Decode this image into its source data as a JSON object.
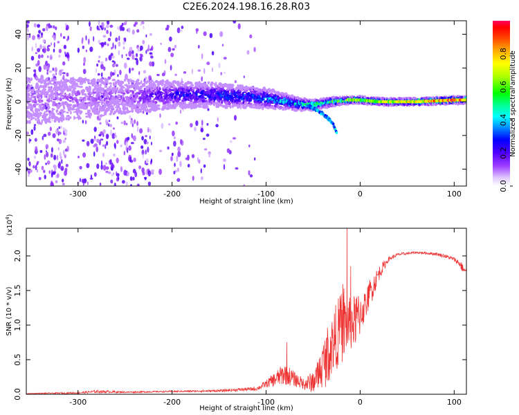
{
  "title": "C2E6.2024.198.16.28.R03",
  "chart_data": [
    {
      "type": "heatmap",
      "xlabel": "Height of straight line (km)",
      "ylabel": "Frequency (Hz)",
      "xlim": [
        -355,
        113
      ],
      "ylim": [
        -50,
        48
      ],
      "x_ticks": [
        -300,
        -200,
        -100,
        0,
        100
      ],
      "y_ticks": [
        -40,
        -20,
        0,
        20,
        40
      ],
      "grid": false,
      "colorbar": {
        "label": "Normalized spectral amplitude",
        "range": [
          0.0,
          1.0
        ],
        "ticks": [
          "0.0",
          "0.2",
          "0.4",
          "0.6",
          "0.8"
        ],
        "colormap": [
          "#ffffff",
          "#cc99ff",
          "#8b00ff",
          "#4400ff",
          "#0000ff",
          "#00aaff",
          "#00ffff",
          "#00ff88",
          "#00ff00",
          "#aaff00",
          "#ffff00",
          "#ffaa00",
          "#ff5500",
          "#ff0000",
          "#ff0055"
        ]
      },
      "ridge": {
        "x": [
          -355,
          -300,
          -250,
          -200,
          -150,
          -100,
          -70,
          -50,
          -30,
          -10,
          0,
          20,
          60,
          100,
          113
        ],
        "freq_center": [
          0,
          2,
          3,
          4,
          4,
          2,
          -1,
          -2,
          0,
          1,
          1,
          0,
          0,
          1,
          1
        ],
        "halfwidth": [
          14,
          12,
          10,
          8,
          7,
          6,
          4,
          3,
          2.5,
          2,
          2,
          2,
          2,
          2,
          2
        ],
        "amplitude": [
          0.1,
          0.12,
          0.12,
          0.25,
          0.3,
          0.35,
          0.45,
          0.55,
          0.6,
          0.7,
          0.6,
          0.65,
          0.7,
          0.85,
          0.7
        ]
      },
      "branch": {
        "x": [
          -55,
          -45,
          -38,
          -32,
          -28,
          -26,
          -25
        ],
        "freq": [
          -3,
          -5,
          -8,
          -11,
          -14,
          -17,
          -19
        ]
      },
      "scatter_columns": [
        {
          "x0": -355,
          "x1": -310,
          "density": 0.9
        },
        {
          "x0": -300,
          "x1": -260,
          "density": 0.35
        },
        {
          "x0": -280,
          "x1": -220,
          "density": 0.7
        },
        {
          "x0": -215,
          "x1": -160,
          "density": 0.3
        },
        {
          "x0": -160,
          "x1": -110,
          "density": 0.12
        }
      ]
    },
    {
      "type": "line",
      "xlabel": "Height of straight line (km)",
      "ylabel": "SNR (10 * v/v)",
      "multiplier": "(x10",
      "multiplier_exp": "4",
      "multiplier_close": ")",
      "xlim": [
        -355,
        113
      ],
      "ylim": [
        0,
        2.4
      ],
      "x_ticks": [
        -300,
        -200,
        -100,
        0,
        100
      ],
      "y_ticks": [
        "0.0",
        "0.5",
        "1.0",
        "1.5",
        "2.0"
      ],
      "color": "#ee3333",
      "grid": false,
      "envelope": {
        "x": [
          -355,
          -300,
          -280,
          -250,
          -200,
          -150,
          -110,
          -100,
          -90,
          -80,
          -70,
          -60,
          -50,
          -45,
          -40,
          -35,
          -30,
          -25,
          -20,
          -18,
          -15,
          -10,
          -5,
          0,
          5,
          10,
          20,
          30,
          40,
          60,
          80,
          90,
          100,
          105,
          108,
          110,
          113
        ],
        "base": [
          0.01,
          0.02,
          0.04,
          0.03,
          0.04,
          0.05,
          0.08,
          0.15,
          0.22,
          0.3,
          0.22,
          0.15,
          0.2,
          0.3,
          0.45,
          0.6,
          0.75,
          0.9,
          1.05,
          1.1,
          1.05,
          1.05,
          1.1,
          1.2,
          1.3,
          1.45,
          1.75,
          1.95,
          2.02,
          2.05,
          2.03,
          2.0,
          1.95,
          1.9,
          1.85,
          1.8,
          1.78
        ],
        "noise": [
          0.01,
          0.02,
          0.04,
          0.02,
          0.02,
          0.03,
          0.05,
          0.1,
          0.2,
          0.3,
          0.2,
          0.15,
          0.3,
          0.4,
          0.6,
          0.8,
          0.8,
          0.9,
          0.9,
          1.2,
          0.8,
          0.7,
          0.7,
          0.6,
          0.4,
          0.4,
          0.2,
          0.06,
          0.04,
          0.03,
          0.04,
          0.05,
          0.06,
          0.08,
          0.15,
          0.05,
          0.04
        ]
      },
      "features": [
        {
          "x": -78,
          "y": 0.75,
          "note": ""
        },
        {
          "x": -14,
          "y": 2.4,
          "note": ""
        },
        {
          "x": -10,
          "y": 1.85,
          "note": ""
        }
      ]
    }
  ]
}
